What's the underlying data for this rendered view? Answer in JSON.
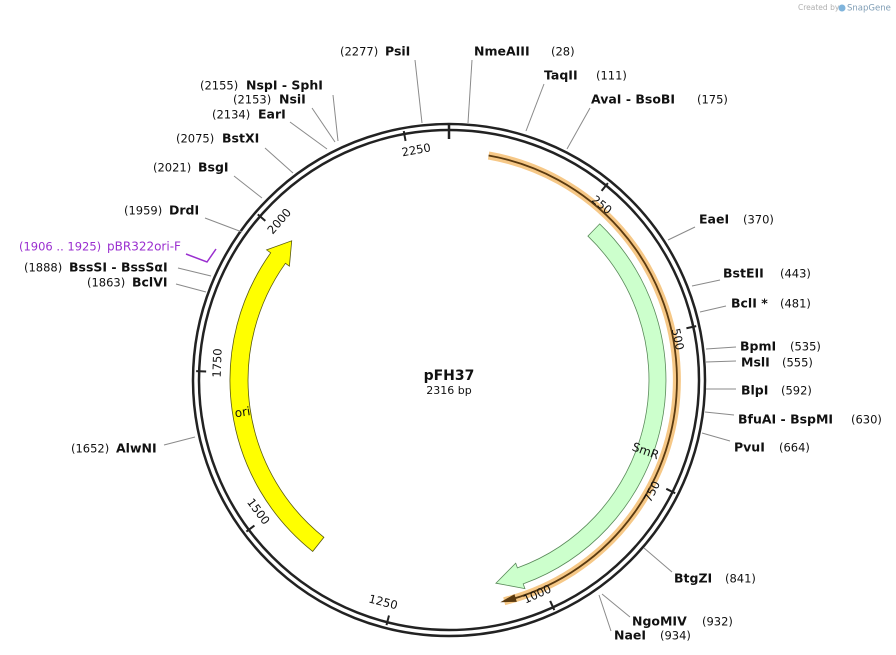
{
  "watermark": {
    "prefix": "Created by",
    "brand": "SnapGene"
  },
  "plasmid": {
    "name": "pFH37",
    "length": "2316 bp"
  },
  "ruler": [
    250,
    500,
    750,
    1000,
    1250,
    1500,
    1750,
    2000,
    2250
  ],
  "features": [
    {
      "label": "SmR"
    },
    {
      "label": "ori"
    }
  ],
  "primer": {
    "range": "(1906 .. 1925)",
    "name": "pBR322ori-F"
  },
  "sites": [
    {
      "name": "PsiI",
      "position": "(2277)"
    },
    {
      "name": "NspI  -  SphI",
      "position": "(2155)"
    },
    {
      "name": "NsiI",
      "position": "(2153)"
    },
    {
      "name": "EarI",
      "position": "(2134)"
    },
    {
      "name": "BstXI",
      "position": "(2075)"
    },
    {
      "name": "BsgI",
      "position": "(2021)"
    },
    {
      "name": "DrdI",
      "position": "(1959)"
    },
    {
      "name": "BssSI  -  BssSαI",
      "position": "(1888)"
    },
    {
      "name": "BclVI",
      "position": "(1863)"
    },
    {
      "name": "AlwNI",
      "position": "(1652)"
    },
    {
      "name": "NmeAIII",
      "position": "(28)"
    },
    {
      "name": "TaqII",
      "position": "(111)"
    },
    {
      "name": "AvaI  -  BsoBI",
      "position": "(175)"
    },
    {
      "name": "EaeI",
      "position": "(370)"
    },
    {
      "name": "BstEII",
      "position": "(443)"
    },
    {
      "name": "BclI *",
      "position": "(481)"
    },
    {
      "name": "BpmI",
      "position": "(535)"
    },
    {
      "name": "MslI",
      "position": "(555)"
    },
    {
      "name": "BlpI",
      "position": "(592)"
    },
    {
      "name": "BfuAI  -  BspMI",
      "position": "(630)"
    },
    {
      "name": "PvuI",
      "position": "(664)"
    },
    {
      "name": "BtgZI",
      "position": "(841)"
    },
    {
      "name": "NgoMIV",
      "position": "(932)"
    },
    {
      "name": "NaeI",
      "position": "(934)"
    }
  ]
}
